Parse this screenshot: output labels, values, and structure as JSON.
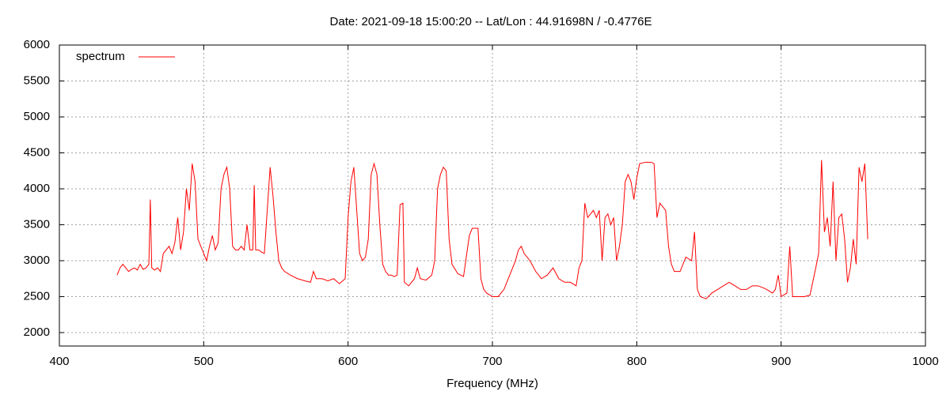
{
  "chart_data": {
    "type": "line",
    "title": "Date: 2021-09-18 15:00:20  --  Lat/Lon : 44.91698N / -0.4776E",
    "x_label": "Frequency (MHz)",
    "xlim": [
      400,
      1000
    ],
    "xticks": [
      400,
      500,
      600,
      700,
      800,
      900,
      1000
    ],
    "ylim": [
      1813,
      6000
    ],
    "yticks": [
      2000,
      2500,
      3000,
      3500,
      4000,
      4500,
      5000,
      5500,
      6000
    ],
    "grid": true,
    "legend": "upper left",
    "series": [
      {
        "name": "spectrum",
        "color": "#ff0000",
        "x": [
          440,
          442,
          444,
          446,
          448,
          450,
          452,
          454,
          456,
          458,
          460,
          462,
          463,
          464,
          466,
          468,
          470,
          472,
          474,
          476,
          478,
          480,
          482,
          484,
          486,
          488,
          490,
          492,
          494,
          496,
          498,
          500,
          502,
          504,
          506,
          508,
          510,
          512,
          514,
          516,
          518,
          520,
          522,
          524,
          526,
          528,
          530,
          532,
          534,
          535,
          536,
          538,
          540,
          542,
          544,
          546,
          548,
          550,
          552,
          554,
          556,
          560,
          565,
          570,
          574,
          576,
          578,
          582,
          586,
          590,
          594,
          598,
          600,
          602,
          604,
          606,
          608,
          610,
          612,
          614,
          616,
          618,
          620,
          622,
          624,
          626,
          628,
          630,
          632,
          634,
          636,
          638,
          639,
          642,
          644,
          646,
          648,
          650,
          654,
          658,
          660,
          662,
          664,
          666,
          668,
          670,
          672,
          676,
          680,
          684,
          686,
          688,
          690,
          692,
          694,
          696,
          700,
          704,
          708,
          712,
          716,
          718,
          720,
          722,
          726,
          730,
          734,
          738,
          742,
          746,
          750,
          754,
          758,
          760,
          762,
          764,
          766,
          768,
          770,
          772,
          774,
          776,
          778,
          780,
          782,
          784,
          786,
          788,
          790,
          792,
          794,
          796,
          798,
          800,
          802,
          806,
          810,
          812,
          814,
          816,
          818,
          820,
          822,
          824,
          826,
          830,
          834,
          838,
          840,
          842,
          844,
          848,
          852,
          856,
          860,
          864,
          868,
          872,
          876,
          880,
          884,
          888,
          890,
          894,
          896,
          898,
          900,
          904,
          906,
          908,
          912,
          916,
          920,
          924,
          926,
          928,
          930,
          932,
          934,
          936,
          938,
          940,
          942,
          944,
          946,
          948,
          950,
          952,
          954,
          956,
          958,
          960
        ],
        "values": [
          2800,
          2900,
          2950,
          2900,
          2850,
          2880,
          2900,
          2870,
          2950,
          2880,
          2900,
          2950,
          3850,
          2900,
          2870,
          2900,
          2850,
          3100,
          3150,
          3200,
          3100,
          3250,
          3600,
          3150,
          3400,
          4000,
          3700,
          4350,
          4100,
          3300,
          3200,
          3100,
          3000,
          3200,
          3350,
          3150,
          3250,
          4000,
          4200,
          4300,
          4000,
          3200,
          3150,
          3150,
          3200,
          3150,
          3500,
          3150,
          3150,
          4050,
          3150,
          3150,
          3120,
          3100,
          3700,
          4300,
          3900,
          3400,
          3000,
          2900,
          2850,
          2800,
          2750,
          2720,
          2700,
          2850,
          2750,
          2750,
          2720,
          2750,
          2680,
          2750,
          3600,
          4100,
          4300,
          3700,
          3100,
          3000,
          3050,
          3300,
          4200,
          4350,
          4200,
          3500,
          2950,
          2850,
          2800,
          2800,
          2780,
          2800,
          3780,
          3800,
          2700,
          2650,
          2700,
          2750,
          2900,
          2750,
          2730,
          2800,
          3000,
          4000,
          4200,
          4300,
          4250,
          3300,
          2950,
          2820,
          2780,
          3350,
          3450,
          3450,
          3450,
          2750,
          2600,
          2550,
          2500,
          2500,
          2600,
          2800,
          3000,
          3150,
          3200,
          3100,
          3000,
          2850,
          2750,
          2800,
          2900,
          2750,
          2700,
          2700,
          2650,
          2900,
          3000,
          3800,
          3600,
          3650,
          3700,
          3600,
          3700,
          3000,
          3600,
          3650,
          3500,
          3600,
          3000,
          3200,
          3500,
          4100,
          4200,
          4100,
          3850,
          4150,
          4350,
          4370,
          4370,
          4350,
          3600,
          3800,
          3750,
          3700,
          3200,
          2950,
          2850,
          2850,
          3050,
          3000,
          3400,
          2600,
          2500,
          2470,
          2550,
          2600,
          2650,
          2700,
          2650,
          2600,
          2600,
          2650,
          2650,
          2620,
          2600,
          2550,
          2600,
          2800,
          2500,
          2550,
          3200,
          2500,
          2500,
          2500,
          2520,
          2900,
          3100,
          4400,
          3400,
          3600,
          3200,
          4100,
          3000,
          3600,
          3650,
          3300,
          2700,
          2900,
          3300,
          2950,
          4300,
          4100,
          4350,
          3300
        ]
      }
    ]
  }
}
